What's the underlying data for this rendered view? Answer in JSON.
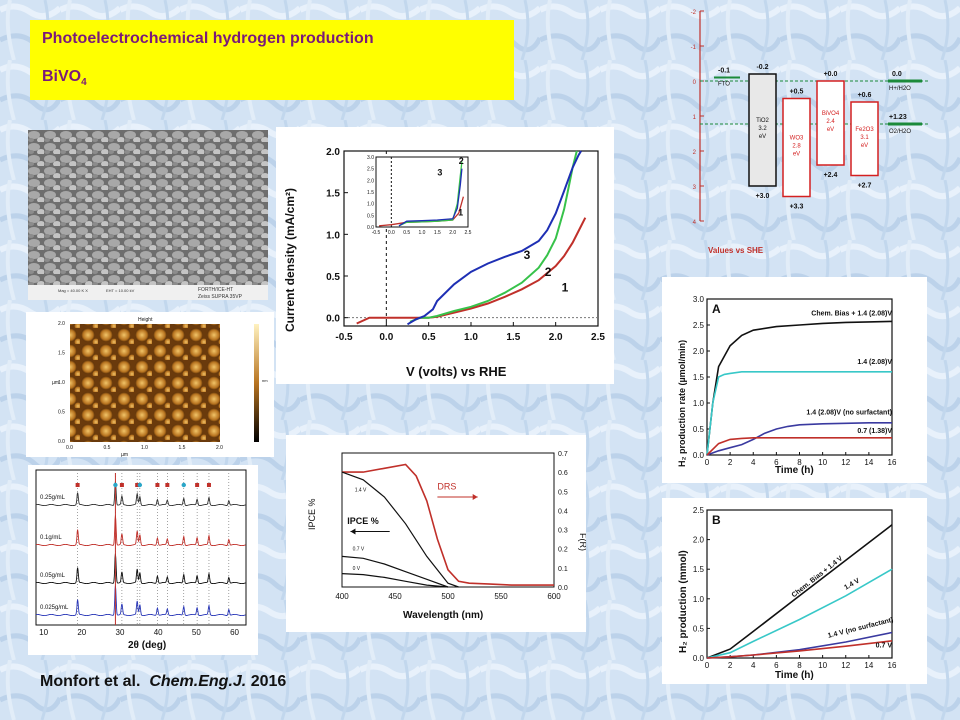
{
  "slide": {
    "title": "Photoelectrochemical hydrogen production",
    "subtitle_main": "BiVO",
    "subtitle_sub": "4",
    "citation_authors": "Monfort et al.",
    "citation_journal": "Chem.Eng.J.",
    "citation_year": "2016"
  },
  "sem": {
    "footer_text": [
      "Mag = 40.00 K X",
      "EHT = 10.00 kV",
      "FORTH/ICE-HT",
      "Zeiss SUPRA 35VP"
    ]
  },
  "afm": {
    "title": "Height",
    "xticks": [
      "0.0",
      "0.5",
      "1.0",
      "1.5",
      "2.0"
    ],
    "yticks": [
      "0.0",
      "0.5",
      "1.0",
      "1.5",
      "2.0"
    ],
    "xunit": "µm",
    "yunit": "µm",
    "colorbar_unit": "nm"
  },
  "chart_data": [
    {
      "id": "iv",
      "type": "line",
      "title": "",
      "xlabel": "V (volts) vs RHE",
      "ylabel": "Current density (mA/cm²)",
      "xlim": [
        -0.5,
        2.5
      ],
      "ylim": [
        -0.1,
        2.0
      ],
      "xticks": [
        -0.5,
        0.0,
        0.5,
        1.0,
        1.5,
        2.0,
        2.5
      ],
      "yticks": [
        0.0,
        0.5,
        1.0,
        1.5,
        2.0
      ],
      "series": [
        {
          "name": "1",
          "color": "#c0302a",
          "x": [
            -0.35,
            -0.2,
            0.0,
            0.3,
            0.5,
            0.6,
            0.8,
            1.0,
            1.2,
            1.4,
            1.6,
            1.8,
            2.0,
            2.1,
            2.2,
            2.3,
            2.35
          ],
          "y": [
            -0.07,
            0.0,
            0.0,
            0.0,
            0.0,
            0.01,
            0.06,
            0.11,
            0.17,
            0.25,
            0.34,
            0.45,
            0.62,
            0.74,
            0.9,
            1.1,
            1.2
          ]
        },
        {
          "name": "2",
          "color": "#37c24a",
          "x": [
            0.28,
            0.4,
            0.5,
            0.6,
            0.8,
            1.0,
            1.2,
            1.4,
            1.6,
            1.8,
            1.9,
            2.0,
            2.1,
            2.15,
            2.2,
            2.25
          ],
          "y": [
            -0.05,
            0.0,
            0.0,
            0.02,
            0.08,
            0.13,
            0.2,
            0.3,
            0.42,
            0.6,
            0.75,
            0.95,
            1.3,
            1.55,
            1.8,
            2.0
          ]
        },
        {
          "name": "3",
          "color": "#1e2fb4",
          "x": [
            0.25,
            0.35,
            0.45,
            0.55,
            0.6,
            0.8,
            1.0,
            1.2,
            1.4,
            1.6,
            1.8,
            1.9,
            2.0,
            2.1,
            2.2,
            2.27,
            2.3
          ],
          "y": [
            -0.08,
            -0.02,
            0.02,
            0.1,
            0.2,
            0.4,
            0.55,
            0.65,
            0.73,
            0.8,
            0.92,
            1.05,
            1.25,
            1.52,
            1.8,
            1.95,
            2.0
          ]
        }
      ],
      "labels": [
        "1",
        "2",
        "3"
      ],
      "inset": {
        "xticks": [
          "-0.5",
          "0.0",
          "0.5",
          "1.0",
          "1.5",
          "2.0",
          "2.5"
        ],
        "yticks": [
          "0.0",
          "0.5",
          "1.0",
          "1.5",
          "2.0",
          "2.5",
          "3.0"
        ],
        "labels": [
          "1",
          "2",
          "3"
        ]
      }
    },
    {
      "id": "xrd",
      "type": "line",
      "title": "",
      "xlabel": "2θ (deg)",
      "ylabel": "",
      "xlim": [
        8,
        63
      ],
      "xticks": [
        10,
        20,
        30,
        40,
        50,
        60
      ],
      "series": [
        {
          "name": "0.25g/mL",
          "color": "#333333"
        },
        {
          "name": "0.1g/mL",
          "color": "#c0302a"
        },
        {
          "name": "0.05g/mL",
          "color": "#111111"
        },
        {
          "name": "0.025g/mL",
          "color": "#2a38b8"
        }
      ],
      "peaks": [
        18.9,
        28.8,
        30.5,
        34.5,
        35.2,
        39.8,
        42.4,
        46.7,
        50.2,
        53.3,
        58.5
      ]
    },
    {
      "id": "ipce",
      "type": "line",
      "title": "",
      "xlabel": "Wavelength (nm)",
      "ylabel_left": "IPCE %",
      "ylabel_right": "F(R)",
      "xlim": [
        400,
        600
      ],
      "ylim_right": [
        0,
        0.7
      ],
      "xticks": [
        400,
        450,
        500,
        550,
        600
      ],
      "yticks_right": [
        "0.0",
        "0.1",
        "0.2",
        "0.3",
        "0.4",
        "0.5",
        "0.6",
        "0.7"
      ],
      "annotations": [
        "1.4 V",
        "0.7 V",
        "0 V",
        "IPCE %",
        "DRS"
      ],
      "series": [
        {
          "name": "DRS",
          "color": "#c0302a",
          "x": [
            400,
            420,
            440,
            460,
            470,
            480,
            490,
            500,
            510,
            520,
            540,
            560,
            580,
            600
          ],
          "y": [
            0.6,
            0.6,
            0.62,
            0.64,
            0.58,
            0.45,
            0.25,
            0.09,
            0.03,
            0.02,
            0.015,
            0.01,
            0.01,
            0.01
          ]
        },
        {
          "name": "1.4 V",
          "color": "#111111",
          "x": [
            400,
            420,
            440,
            460,
            480,
            500,
            510
          ],
          "y": [
            0.6,
            0.56,
            0.47,
            0.33,
            0.16,
            0.02,
            0.0
          ]
        },
        {
          "name": "0.7 V",
          "color": "#111111",
          "x": [
            400,
            420,
            440,
            460,
            480,
            500
          ],
          "y": [
            0.16,
            0.15,
            0.12,
            0.08,
            0.04,
            0.0
          ]
        },
        {
          "name": "0 V",
          "color": "#111111",
          "x": [
            400,
            420,
            440,
            460,
            480,
            500
          ],
          "y": [
            0.07,
            0.065,
            0.05,
            0.03,
            0.01,
            0.0
          ]
        }
      ]
    },
    {
      "id": "band",
      "type": "bar",
      "title": "",
      "xlabel": "Values vs SHE",
      "ylim": [
        -2,
        4
      ],
      "yticks": [
        "-2",
        "-1",
        "0",
        "1",
        "2",
        "3",
        "4"
      ],
      "materials": [
        {
          "label": "FTO",
          "cb_label": "-0.1",
          "color": "#111111"
        },
        {
          "label": "TiO2",
          "gap": "3.2",
          "unit": "eV",
          "cb_label": "-0.2",
          "vb_label": "+3.0",
          "cb": -0.2,
          "vb": 3.0,
          "color": "#111111"
        },
        {
          "label": "WO3",
          "gap": "2.8",
          "unit": "eV",
          "cb_label": "+0.5",
          "vb_label": "+3.3",
          "cb": 0.5,
          "vb": 3.3,
          "color": "#d42020"
        },
        {
          "label": "BiVO4",
          "gap": "2.4",
          "unit": "eV",
          "cb_label": "+0.0",
          "vb_label": "+2.4",
          "cb": 0.0,
          "vb": 2.4,
          "color": "#d42020"
        },
        {
          "label": "Fe2O3",
          "gap": "3.1",
          "unit": "eV",
          "cb_label": "+0.6",
          "vb_label": "+2.7",
          "cb": 0.6,
          "vb": 2.7,
          "color": "#d42020"
        },
        {
          "label": "H+/H2O",
          "cb_label": "0.0",
          "color": "#1b8a3a"
        },
        {
          "label": "O2/H2O",
          "cb_label": "+1.23",
          "color": "#1b8a3a"
        }
      ]
    },
    {
      "id": "h2rate",
      "type": "line",
      "title": "A",
      "xlabel": "Time (h)",
      "ylabel": "H₂ production rate (µmol/min)",
      "xlim": [
        0,
        16
      ],
      "ylim": [
        0,
        3
      ],
      "xticks": [
        0,
        2,
        4,
        6,
        8,
        10,
        12,
        14,
        16
      ],
      "yticks": [
        "0.0",
        "0.5",
        "1.0",
        "1.5",
        "2.0",
        "2.5",
        "3.0"
      ],
      "series": [
        {
          "name": "Chem. Bias + 1.4 (2.08)V",
          "color": "#111111",
          "x": [
            0,
            0.5,
            1,
            2,
            3,
            4,
            6,
            8,
            10,
            12,
            14,
            16
          ],
          "y": [
            0,
            1.0,
            1.7,
            2.1,
            2.3,
            2.4,
            2.47,
            2.5,
            2.53,
            2.55,
            2.56,
            2.57
          ]
        },
        {
          "name": "1.4 (2.08)V",
          "color": "#38c8c8",
          "x": [
            0,
            0.5,
            1,
            1.5,
            2,
            3,
            4,
            6,
            8,
            10,
            12,
            14,
            16
          ],
          "y": [
            0,
            1.0,
            1.5,
            1.55,
            1.57,
            1.6,
            1.6,
            1.6,
            1.6,
            1.6,
            1.6,
            1.6,
            1.6
          ]
        },
        {
          "name": "1.4 (2.08)V (no surfactant)",
          "color": "#3a3aa0",
          "x": [
            0,
            1,
            2,
            3,
            4,
            5,
            6,
            7,
            8,
            10,
            12,
            14,
            16
          ],
          "y": [
            0,
            0.08,
            0.14,
            0.2,
            0.3,
            0.42,
            0.5,
            0.55,
            0.58,
            0.6,
            0.61,
            0.62,
            0.62
          ]
        },
        {
          "name": "0.7 (1.38)V",
          "color": "#c0302a",
          "x": [
            0,
            1,
            2,
            3,
            4,
            6,
            8,
            10,
            12,
            14,
            16
          ],
          "y": [
            0,
            0.22,
            0.3,
            0.32,
            0.33,
            0.33,
            0.33,
            0.33,
            0.33,
            0.33,
            0.33
          ]
        }
      ]
    },
    {
      "id": "h2total",
      "type": "line",
      "title": "B",
      "xlabel": "Time (h)",
      "ylabel": "H₂ production (mmol)",
      "xlim": [
        0,
        16
      ],
      "ylim": [
        0,
        2.5
      ],
      "xticks": [
        0,
        2,
        4,
        6,
        8,
        10,
        12,
        14,
        16
      ],
      "yticks": [
        "0.0",
        "0.5",
        "1.0",
        "1.5",
        "2.0",
        "2.5"
      ],
      "series": [
        {
          "name": "Chem. Bias + 1.4 V",
          "color": "#111111",
          "x": [
            0,
            2,
            4,
            8,
            12,
            16
          ],
          "y": [
            0,
            0.15,
            0.45,
            1.05,
            1.65,
            2.25
          ]
        },
        {
          "name": "1.4 V",
          "color": "#38c8c8",
          "x": [
            0,
            2,
            4,
            8,
            12,
            16
          ],
          "y": [
            0,
            0.09,
            0.28,
            0.65,
            1.05,
            1.5
          ]
        },
        {
          "name": "1.4 V (no surfactant)",
          "color": "#3a3aa0",
          "x": [
            0,
            2,
            4,
            8,
            12,
            16
          ],
          "y": [
            0,
            0.02,
            0.05,
            0.14,
            0.27,
            0.43
          ]
        },
        {
          "name": "0.7 V",
          "color": "#c0302a",
          "x": [
            0,
            2,
            4,
            8,
            12,
            16
          ],
          "y": [
            0,
            0.02,
            0.05,
            0.12,
            0.2,
            0.29
          ]
        }
      ]
    }
  ]
}
